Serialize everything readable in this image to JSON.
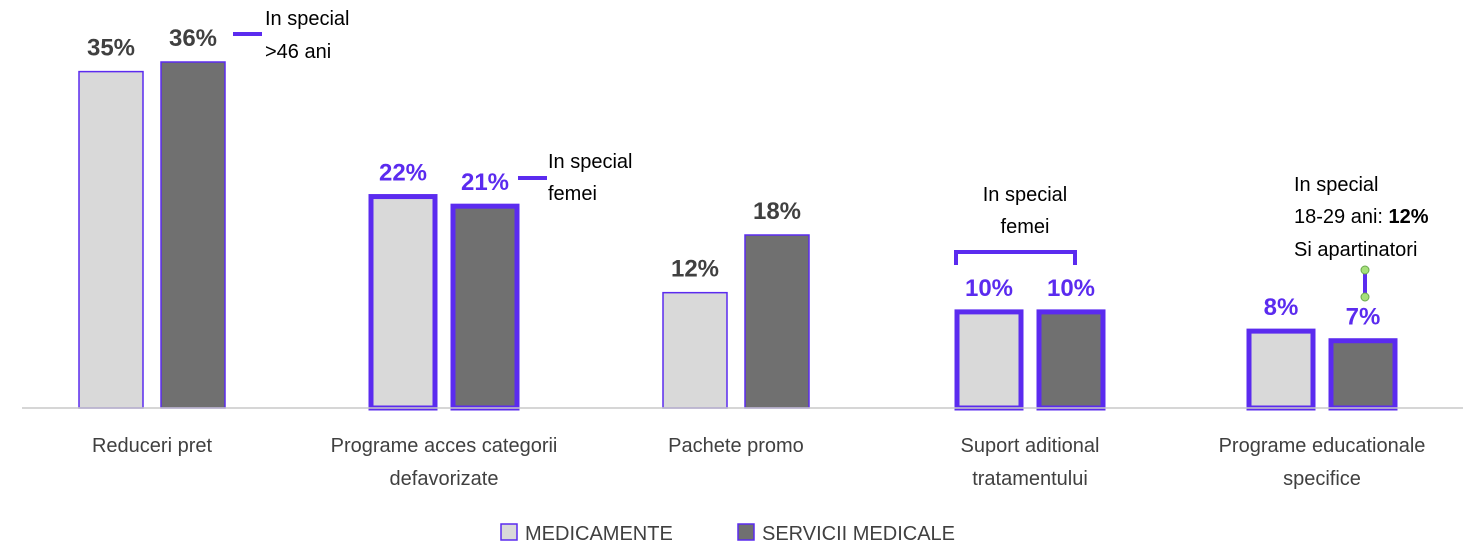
{
  "chart_data": {
    "type": "bar",
    "categories": [
      [
        "Reduceri pret"
      ],
      [
        "Programe acces categorii",
        "defavorizate"
      ],
      [
        "Pachete promo"
      ],
      [
        "Suport aditional",
        "tratamentului"
      ],
      [
        "Programe educationale",
        "specifice"
      ]
    ],
    "series": [
      {
        "name": "MEDICAMENTE",
        "values": [
          35,
          22,
          12,
          10,
          8
        ],
        "labels": [
          "35%",
          "22%",
          "12%",
          "10%",
          "8%"
        ],
        "color": "#d9d9d9"
      },
      {
        "name": "SERVICII MEDICALE",
        "values": [
          36,
          21,
          18,
          10,
          7
        ],
        "labels": [
          "36%",
          "21%",
          "18%",
          "10%",
          "7%"
        ],
        "color": "#707070"
      }
    ],
    "highlighted": [
      [
        false,
        false
      ],
      [
        true,
        true
      ],
      [
        false,
        false
      ],
      [
        true,
        true
      ],
      [
        true,
        true
      ]
    ],
    "ylim": [
      0,
      36
    ],
    "grid": false,
    "legend_position": "bottom",
    "colors": {
      "accent": "#5b2bef",
      "label_default": "#404040",
      "bar_border_default": "#5b2bef",
      "marker": "#a6e07a"
    },
    "annotations": [
      {
        "category": 0,
        "lines": [
          "In special",
          ">46 ani"
        ]
      },
      {
        "category": 1,
        "lines": [
          "In special",
          "femei"
        ]
      },
      {
        "category": 3,
        "lines": [
          "In special",
          "femei"
        ]
      },
      {
        "category": 4,
        "lines": [
          "In special",
          "18-29 ani: ",
          "Si apartinatori"
        ],
        "bold_value": "12%"
      }
    ]
  }
}
